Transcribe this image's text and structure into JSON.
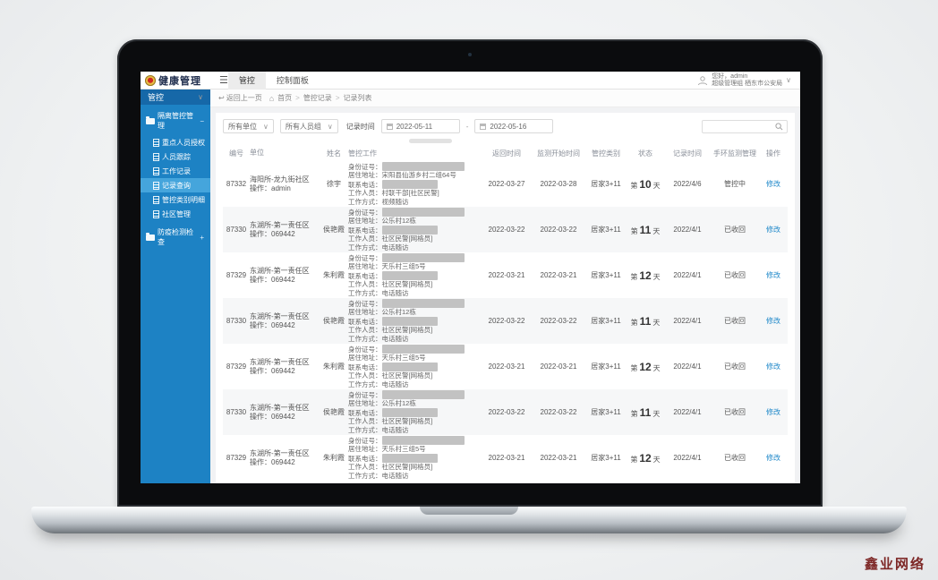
{
  "app_title": "健康管理",
  "header": {
    "tabs": [
      {
        "label": "管控",
        "active": true
      },
      {
        "label": "控制面板",
        "active": false
      }
    ],
    "user": {
      "greeting": "您好，admin",
      "org": "超级管理组 栖东市公安局"
    }
  },
  "icons": {
    "hamburger": "☰",
    "chevron_down": "∨",
    "home": "⌂",
    "back": "↩",
    "group_expanded": "−",
    "group_collapsed": "+"
  },
  "sidebar": {
    "root": {
      "label": "管控"
    },
    "group1": {
      "label": "隔离管控管理",
      "items": [
        {
          "label": "重点人员授权",
          "active": false
        },
        {
          "label": "人员跟踪",
          "active": false
        },
        {
          "label": "工作记录",
          "active": false
        },
        {
          "label": "记录查询",
          "active": true
        },
        {
          "label": "管控类别明细",
          "active": false
        },
        {
          "label": "社区管理",
          "active": false
        }
      ]
    },
    "group2": {
      "label": "防疫检测检查"
    }
  },
  "breadcrumb": {
    "back": "返回上一页",
    "items": [
      "首页",
      "管控记录",
      "记录列表"
    ]
  },
  "filters": {
    "unit_select": "所有单位",
    "group_select": "所有人员组",
    "date_label": "记录时间",
    "date_from": "2022-05-11",
    "date_sep": "-",
    "date_to": "2022-05-16",
    "search_placeholder": ""
  },
  "table": {
    "columns": [
      "编号",
      "单位",
      "姓名",
      "管控工作",
      "返回时间",
      "监测开始时间",
      "管控类别",
      "状态",
      "记录时间",
      "手环监测管理",
      "操作"
    ],
    "day_prefix": "第",
    "day_suffix": "天",
    "rows": [
      {
        "id": "87332",
        "unit": "海阳所-龙九街社区",
        "operator": "操作：admin",
        "name": "徐宇",
        "details": [
          {
            "label": "身份证号：",
            "redacted": "id"
          },
          {
            "label": "居住地址：",
            "text": "宋阳县仙游乡村二组64号"
          },
          {
            "label": "联系电话：",
            "redacted": "phone"
          },
          {
            "label": "工作人员：",
            "text": "村联干部[社区民警]"
          },
          {
            "label": "工作方式：",
            "text": "视频随访"
          }
        ],
        "return_date": "2022-03-27",
        "start_date": "2022-03-28",
        "category": "居家3+11",
        "day": "10",
        "record_date": "2022/4/6",
        "warning": "管控中",
        "action": "修改"
      },
      {
        "id": "87330",
        "unit": "东湖所-第一责任区",
        "operator": "操作：069442",
        "name": "侯艳霞",
        "details": [
          {
            "label": "身份证号：",
            "redacted": "id"
          },
          {
            "label": "居住地址：",
            "text": "公乐村12栋"
          },
          {
            "label": "联系电话：",
            "redacted": "phone"
          },
          {
            "label": "工作人员：",
            "text": "社区民警[网格员]"
          },
          {
            "label": "工作方式：",
            "text": "电话随访"
          }
        ],
        "return_date": "2022-03-22",
        "start_date": "2022-03-22",
        "category": "居家3+11",
        "day": "11",
        "record_date": "2022/4/1",
        "warning": "已收回",
        "action": "修改"
      },
      {
        "id": "87329",
        "unit": "东湖所-第一责任区",
        "operator": "操作：069442",
        "name": "朱利霞",
        "details": [
          {
            "label": "身份证号：",
            "redacted": "id"
          },
          {
            "label": "居住地址：",
            "text": "天乐村三组5号"
          },
          {
            "label": "联系电话：",
            "redacted": "phone"
          },
          {
            "label": "工作人员：",
            "text": "社区民警[网格员]"
          },
          {
            "label": "工作方式：",
            "text": "电话随访"
          }
        ],
        "return_date": "2022-03-21",
        "start_date": "2022-03-21",
        "category": "居家3+11",
        "day": "12",
        "record_date": "2022/4/1",
        "warning": "已收回",
        "action": "修改"
      },
      {
        "id": "87330",
        "unit": "东湖所-第一责任区",
        "operator": "操作：069442",
        "name": "侯艳霞",
        "details": [
          {
            "label": "身份证号：",
            "redacted": "id"
          },
          {
            "label": "居住地址：",
            "text": "公乐村12栋"
          },
          {
            "label": "联系电话：",
            "redacted": "phone"
          },
          {
            "label": "工作人员：",
            "text": "社区民警[网格员]"
          },
          {
            "label": "工作方式：",
            "text": "电话随访"
          }
        ],
        "return_date": "2022-03-22",
        "start_date": "2022-03-22",
        "category": "居家3+11",
        "day": "11",
        "record_date": "2022/4/1",
        "warning": "已收回",
        "action": "修改"
      },
      {
        "id": "87329",
        "unit": "东湖所-第一责任区",
        "operator": "操作：069442",
        "name": "朱利霞",
        "details": [
          {
            "label": "身份证号：",
            "redacted": "id"
          },
          {
            "label": "居住地址：",
            "text": "天乐村三组5号"
          },
          {
            "label": "联系电话：",
            "redacted": "phone"
          },
          {
            "label": "工作人员：",
            "text": "社区民警[网格员]"
          },
          {
            "label": "工作方式：",
            "text": "电话随访"
          }
        ],
        "return_date": "2022-03-21",
        "start_date": "2022-03-21",
        "category": "居家3+11",
        "day": "12",
        "record_date": "2022/4/1",
        "warning": "已收回",
        "action": "修改"
      },
      {
        "id": "87330",
        "unit": "东湖所-第一责任区",
        "operator": "操作：069442",
        "name": "侯艳霞",
        "details": [
          {
            "label": "身份证号：",
            "redacted": "id"
          },
          {
            "label": "居住地址：",
            "text": "公乐村12栋"
          },
          {
            "label": "联系电话：",
            "redacted": "phone"
          },
          {
            "label": "工作人员：",
            "text": "社区民警[网格员]"
          },
          {
            "label": "工作方式：",
            "text": "电话随访"
          }
        ],
        "return_date": "2022-03-22",
        "start_date": "2022-03-22",
        "category": "居家3+11",
        "day": "11",
        "record_date": "2022/4/1",
        "warning": "已收回",
        "action": "修改"
      },
      {
        "id": "87329",
        "unit": "东湖所-第一责任区",
        "operator": "操作：069442",
        "name": "朱利霞",
        "details": [
          {
            "label": "身份证号：",
            "redacted": "id"
          },
          {
            "label": "居住地址：",
            "text": "天乐村三组5号"
          },
          {
            "label": "联系电话：",
            "redacted": "phone"
          },
          {
            "label": "工作人员：",
            "text": "社区民警[网格员]"
          },
          {
            "label": "工作方式：",
            "text": "电话随访"
          }
        ],
        "return_date": "2022-03-21",
        "start_date": "2022-03-21",
        "category": "居家3+11",
        "day": "12",
        "record_date": "2022/4/1",
        "warning": "已收回",
        "action": "修改"
      }
    ]
  },
  "colors": {
    "sidebar": "#1d82c4",
    "sidebar_active": "#45a5dc",
    "link": "#1d87c9",
    "watermark": "#7d2726"
  },
  "watermark": "鑫业网络"
}
